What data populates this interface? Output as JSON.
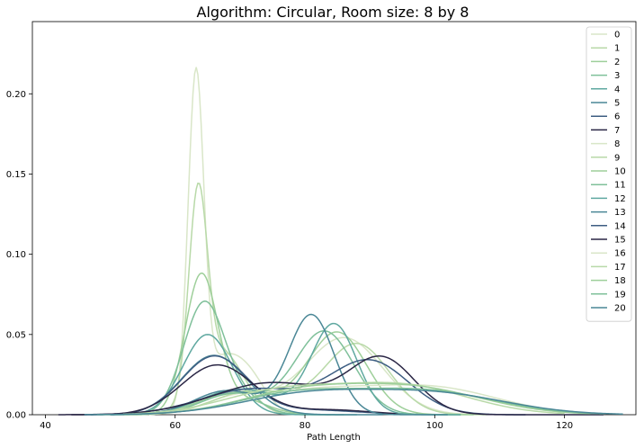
{
  "chart_data": {
    "type": "line",
    "title": "Algorithm: Circular, Room size: 8 by 8",
    "xlabel": "Path Length",
    "ylabel": "",
    "xlim": [
      38,
      131
    ],
    "ylim": [
      0,
      0.245
    ],
    "xticks": [
      40,
      60,
      80,
      100,
      120
    ],
    "yticks": [
      0.0,
      0.05,
      0.1,
      0.15,
      0.2
    ],
    "ytick_labels": [
      "0.00",
      "0.05",
      "0.10",
      "0.15",
      "0.20"
    ],
    "grid": false,
    "legend": "top-right",
    "series": [
      {
        "name": "0",
        "color": "#d9e6c8",
        "peaks": [
          {
            "mu": 63.2,
            "sigma": 1.2,
            "amp": 0.2
          },
          {
            "mu": 67.5,
            "sigma": 3.5,
            "amp": 0.035
          },
          {
            "mu": 72,
            "sigma": 2.5,
            "amp": 0.012
          }
        ],
        "range": [
          56,
          80
        ]
      },
      {
        "name": "1",
        "color": "#b8d9a8",
        "peaks": [
          {
            "mu": 63.5,
            "sigma": 1.4,
            "amp": 0.12
          },
          {
            "mu": 67,
            "sigma": 3.5,
            "amp": 0.04
          }
        ],
        "range": [
          54,
          80
        ]
      },
      {
        "name": "2",
        "color": "#9ecf9a",
        "peaks": [
          {
            "mu": 64,
            "sigma": 2.5,
            "amp": 0.085
          },
          {
            "mu": 70,
            "sigma": 4,
            "amp": 0.01
          }
        ],
        "range": [
          52,
          84
        ]
      },
      {
        "name": "3",
        "color": "#7fc09a",
        "peaks": [
          {
            "mu": 64.5,
            "sigma": 3.2,
            "amp": 0.07
          },
          {
            "mu": 71,
            "sigma": 3,
            "amp": 0.008
          }
        ],
        "range": [
          50,
          86
        ]
      },
      {
        "name": "4",
        "color": "#5fa8a0",
        "peaks": [
          {
            "mu": 65,
            "sigma": 3.8,
            "amp": 0.05
          }
        ],
        "range": [
          50,
          88
        ]
      },
      {
        "name": "5",
        "color": "#4a8796",
        "peaks": [
          {
            "mu": 66,
            "sigma": 5,
            "amp": 0.037
          }
        ],
        "range": [
          47,
          92
        ]
      },
      {
        "name": "6",
        "color": "#3d5d82",
        "peaks": [
          {
            "mu": 66,
            "sigma": 5,
            "amp": 0.036
          },
          {
            "mu": 80,
            "sigma": 8,
            "amp": 0.003
          }
        ],
        "range": [
          46,
          96
        ]
      },
      {
        "name": "7",
        "color": "#2a2645",
        "peaks": [
          {
            "mu": 66.5,
            "sigma": 5.5,
            "amp": 0.031
          },
          {
            "mu": 84,
            "sigma": 6,
            "amp": 0.003
          }
        ],
        "range": [
          44,
          100
        ]
      },
      {
        "name": "8",
        "color": "#d9e6c8",
        "peaks": [
          {
            "mu": 86,
            "sigma": 6,
            "amp": 0.048
          },
          {
            "mu": 70,
            "sigma": 5,
            "amp": 0.012
          }
        ],
        "range": [
          56,
          106
        ]
      },
      {
        "name": "9",
        "color": "#b8d9a8",
        "peaks": [
          {
            "mu": 88,
            "sigma": 5,
            "amp": 0.044
          },
          {
            "mu": 72,
            "sigma": 6,
            "amp": 0.015
          }
        ],
        "range": [
          56,
          108
        ]
      },
      {
        "name": "10",
        "color": "#9ecf9a",
        "peaks": [
          {
            "mu": 85,
            "sigma": 4.5,
            "amp": 0.051
          },
          {
            "mu": 70,
            "sigma": 6,
            "amp": 0.014
          }
        ],
        "range": [
          54,
          106
        ]
      },
      {
        "name": "11",
        "color": "#7fc09a",
        "peaks": [
          {
            "mu": 83,
            "sigma": 4.5,
            "amp": 0.052
          },
          {
            "mu": 69,
            "sigma": 5,
            "amp": 0.013
          }
        ],
        "range": [
          54,
          104
        ]
      },
      {
        "name": "12",
        "color": "#5fa8a0",
        "peaks": [
          {
            "mu": 84.5,
            "sigma": 3.5,
            "amp": 0.056
          },
          {
            "mu": 70,
            "sigma": 6,
            "amp": 0.016
          }
        ],
        "range": [
          52,
          104
        ]
      },
      {
        "name": "13",
        "color": "#4a8796",
        "peaks": [
          {
            "mu": 81,
            "sigma": 3.5,
            "amp": 0.062
          },
          {
            "mu": 68,
            "sigma": 5,
            "amp": 0.015
          }
        ],
        "range": [
          50,
          102
        ]
      },
      {
        "name": "14",
        "color": "#3d5d82",
        "peaks": [
          {
            "mu": 90,
            "sigma": 6,
            "amp": 0.033
          },
          {
            "mu": 72,
            "sigma": 8,
            "amp": 0.016
          }
        ],
        "range": [
          48,
          114
        ]
      },
      {
        "name": "15",
        "color": "#2a2645",
        "peaks": [
          {
            "mu": 92,
            "sigma": 5,
            "amp": 0.033
          },
          {
            "mu": 75,
            "sigma": 9,
            "amp": 0.02
          }
        ],
        "range": [
          42,
          126
        ]
      },
      {
        "name": "16",
        "color": "#d9e6c8",
        "peaks": [
          {
            "mu": 100,
            "sigma": 10,
            "amp": 0.016
          },
          {
            "mu": 80,
            "sigma": 10,
            "amp": 0.014
          }
        ],
        "range": [
          52,
          122
        ]
      },
      {
        "name": "17",
        "color": "#b8d9a8",
        "peaks": [
          {
            "mu": 95,
            "sigma": 10,
            "amp": 0.018
          },
          {
            "mu": 76,
            "sigma": 9,
            "amp": 0.014
          }
        ],
        "range": [
          52,
          120
        ]
      },
      {
        "name": "18",
        "color": "#9ecf9a",
        "peaks": [
          {
            "mu": 96,
            "sigma": 11,
            "amp": 0.017
          },
          {
            "mu": 78,
            "sigma": 9,
            "amp": 0.012
          }
        ],
        "range": [
          48,
          124
        ]
      },
      {
        "name": "19",
        "color": "#7fc09a",
        "peaks": [
          {
            "mu": 98,
            "sigma": 11,
            "amp": 0.015
          },
          {
            "mu": 78,
            "sigma": 9,
            "amp": 0.012
          }
        ],
        "range": [
          48,
          126
        ]
      },
      {
        "name": "20",
        "color": "#4a8796",
        "peaks": [
          {
            "mu": 100,
            "sigma": 11,
            "amp": 0.013
          },
          {
            "mu": 80,
            "sigma": 10,
            "amp": 0.012
          }
        ],
        "range": [
          46,
          129
        ]
      }
    ]
  }
}
